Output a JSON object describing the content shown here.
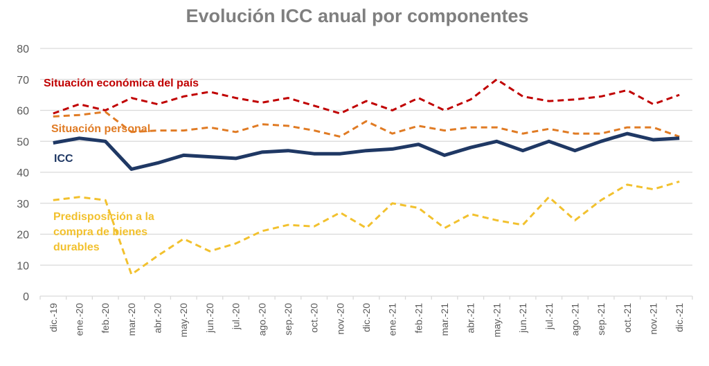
{
  "chart_data": {
    "type": "line",
    "title": "Evolución ICC anual por componentes",
    "xlabel": "",
    "ylabel": "",
    "ylim": [
      0,
      80
    ],
    "yticks": [
      0,
      10,
      20,
      30,
      40,
      50,
      60,
      70,
      80
    ],
    "grid": true,
    "legend": "inline-labels",
    "categories": [
      "dic.-19",
      "ene.-20",
      "feb.-20",
      "mar.-20",
      "abr.-20",
      "may.-20",
      "jun.-20",
      "jul.-20",
      "ago.-20",
      "sep.-20",
      "oct.-20",
      "nov.-20",
      "dic.-20",
      "ene.-21",
      "feb.-21",
      "mar.-21",
      "abr.-21",
      "may.-21",
      "jun.-21",
      "jul.-21",
      "ago.-21",
      "sep.-21",
      "oct.-21",
      "nov.-21",
      "dic.-21"
    ],
    "series": [
      {
        "name": "Situación económica del país",
        "color": "#c00000",
        "style": "dashed",
        "values": [
          59,
          62,
          60,
          64,
          62,
          64.5,
          66,
          64,
          62.5,
          64,
          61.5,
          59,
          63,
          60,
          64,
          60,
          63.5,
          70,
          64.5,
          63,
          63.5,
          64.5,
          66.5,
          62,
          65
        ]
      },
      {
        "name": "Situación personal",
        "color": "#e07b24",
        "style": "dashed",
        "values": [
          58,
          58.5,
          59.5,
          53,
          53.5,
          53.5,
          54.5,
          53,
          55.5,
          55,
          53.5,
          51.5,
          56.5,
          52.5,
          55,
          53.5,
          54.5,
          54.5,
          52.5,
          54,
          52.5,
          52.5,
          54.5,
          54.5,
          51.5
        ]
      },
      {
        "name": "ICC",
        "color": "#1f3864",
        "style": "solid",
        "values": [
          49.5,
          51,
          50,
          41,
          43,
          45.5,
          45,
          44.5,
          46.5,
          47,
          46,
          46,
          47,
          47.5,
          49,
          45.5,
          48,
          50,
          47,
          50,
          47,
          50,
          52.5,
          50.5,
          51
        ]
      },
      {
        "name": "Predisposición a la compra de bienes durables",
        "color": "#f2c12e",
        "style": "dashed",
        "values": [
          31,
          32,
          31,
          7,
          13,
          18.5,
          14.5,
          17,
          21,
          23,
          22.5,
          27,
          22,
          30,
          28.5,
          22,
          26.5,
          24.5,
          23,
          32,
          24.5,
          31,
          36,
          34.5,
          37
        ]
      }
    ],
    "annotations": [
      {
        "text_lines": [
          "Situación económica del país"
        ],
        "series": 0
      },
      {
        "text_lines": [
          "Situación personal"
        ],
        "series": 1
      },
      {
        "text_lines": [
          "ICC"
        ],
        "series": 2
      },
      {
        "text_lines": [
          "Predisposición a la",
          "compra de bienes",
          "durables"
        ],
        "series": 3
      }
    ]
  }
}
